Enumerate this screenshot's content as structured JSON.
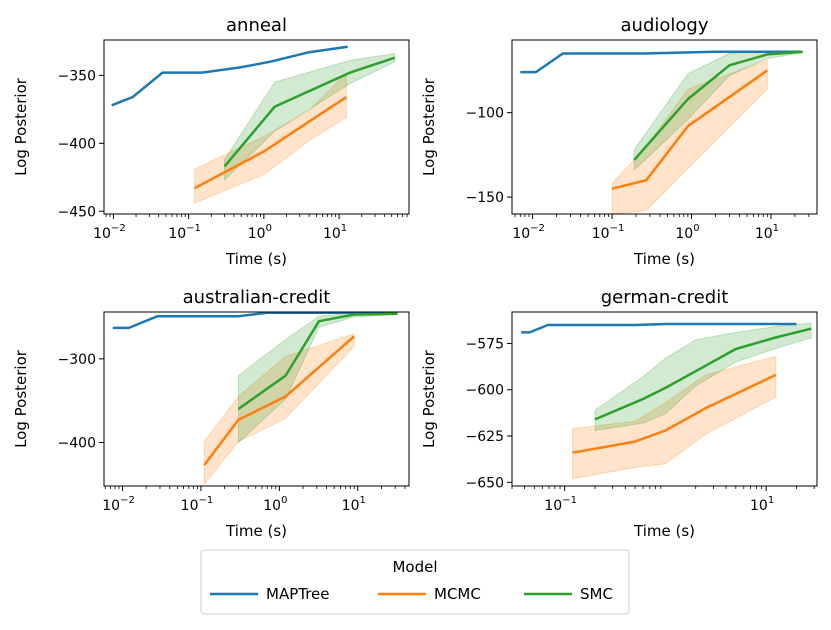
{
  "figure": {
    "legend": {
      "title": "Model",
      "entries": [
        "MAPTree",
        "MCMC",
        "SMC"
      ],
      "placement": "bottom-center"
    },
    "colors": {
      "MAPTree": "#1f77b4",
      "MCMC": "#ff7f0e",
      "SMC": "#2ca02c"
    }
  },
  "chart_data": [
    {
      "type": "line",
      "title": "anneal",
      "xlabel": "Time (s)",
      "ylabel": "Log Posterior",
      "xscale": "log",
      "xlim": [
        0.0075,
        85
      ],
      "ylim": [
        -452,
        -324
      ],
      "yticks": [
        -450,
        -400,
        -350
      ],
      "yticklabels": [
        "−450",
        "−400",
        "−350"
      ],
      "xticks": [
        0.01,
        0.1,
        1,
        10
      ],
      "xticklabels": [
        [
          "10",
          "−2"
        ],
        [
          "10",
          "−1"
        ],
        [
          "10",
          "0"
        ],
        [
          "10",
          "1"
        ]
      ],
      "series": [
        {
          "name": "MAPTree",
          "x": [
            0.0095,
            0.018,
            0.045,
            0.15,
            0.5,
            1.2,
            4,
            13
          ],
          "y": [
            -372,
            -366,
            -348,
            -348,
            -344,
            -340,
            -333,
            -329
          ]
        },
        {
          "name": "MCMC",
          "x": [
            0.12,
            1.0,
            4.0,
            12.5
          ],
          "y": [
            -433,
            -406,
            -384,
            -366
          ],
          "lower": [
            -444,
            -423,
            -398,
            -381
          ],
          "upper": [
            -419,
            -395,
            -376,
            -348
          ]
        },
        {
          "name": "SMC",
          "x": [
            0.3,
            1.4,
            14,
            55
          ],
          "y": [
            -417,
            -373,
            -348,
            -337
          ],
          "lower": [
            -427,
            -391,
            -356,
            -340
          ],
          "upper": [
            -412,
            -355,
            -339,
            -334
          ]
        }
      ]
    },
    {
      "type": "line",
      "title": "audiology",
      "xlabel": "Time (s)",
      "ylabel": "Log Posterior",
      "xscale": "log",
      "xlim": [
        0.0055,
        38
      ],
      "ylim": [
        -160,
        -57
      ],
      "yticks": [
        -150,
        -100
      ],
      "yticklabels": [
        "−150",
        "−100"
      ],
      "xticks": [
        0.01,
        0.1,
        1,
        10
      ],
      "xticklabels": [
        [
          "10",
          "−2"
        ],
        [
          "10",
          "−1"
        ],
        [
          "10",
          "0"
        ],
        [
          "10",
          "1"
        ]
      ],
      "series": [
        {
          "name": "MAPTree",
          "x": [
            0.007,
            0.011,
            0.024,
            0.25,
            0.6,
            2,
            10,
            24
          ],
          "y": [
            -76,
            -76,
            -65,
            -65,
            -64.5,
            -64,
            -64,
            -64
          ]
        },
        {
          "name": "MCMC",
          "x": [
            0.1,
            0.27,
            0.9,
            9
          ],
          "y": [
            -145,
            -140,
            -108,
            -75
          ],
          "lower": [
            -160,
            -158,
            -133,
            -86
          ],
          "upper": [
            -142,
            -120,
            -86,
            -69
          ]
        },
        {
          "name": "SMC",
          "x": [
            0.19,
            0.9,
            3,
            9,
            25
          ],
          "y": [
            -128,
            -92,
            -72,
            -65.5,
            -64
          ],
          "lower": [
            -134,
            -104,
            -78,
            -68,
            -64.5
          ],
          "upper": [
            -122,
            -77,
            -65,
            -63.5,
            -63.5
          ]
        }
      ]
    },
    {
      "type": "line",
      "title": "australian-credit",
      "xlabel": "Time (s)",
      "ylabel": "Log Posterior",
      "xscale": "log",
      "xlim": [
        0.0058,
        45
      ],
      "ylim": [
        -452,
        -244
      ],
      "yticks": [
        -400,
        -300
      ],
      "yticklabels": [
        "−400",
        "−300"
      ],
      "xticks": [
        0.01,
        0.1,
        1,
        10
      ],
      "xticklabels": [
        [
          "10",
          "−2"
        ],
        [
          "10",
          "−1"
        ],
        [
          "10",
          "0"
        ],
        [
          "10",
          "1"
        ]
      ],
      "series": [
        {
          "name": "MAPTree",
          "x": [
            0.0075,
            0.012,
            0.028,
            0.3,
            0.7,
            3,
            14,
            28
          ],
          "y": [
            -263,
            -263,
            -249,
            -249,
            -245,
            -245,
            -245,
            -245
          ]
        },
        {
          "name": "MCMC",
          "x": [
            0.11,
            0.3,
            1.2,
            9
          ],
          "y": [
            -427,
            -373,
            -345,
            -273
          ],
          "lower": [
            -450,
            -399,
            -371,
            -285
          ],
          "upper": [
            -399,
            -345,
            -297,
            -270
          ]
        },
        {
          "name": "SMC",
          "x": [
            0.3,
            1.2,
            3.2,
            9,
            32
          ],
          "y": [
            -360,
            -320,
            -255,
            -247,
            -246
          ],
          "lower": [
            -400,
            -348,
            -262,
            -250,
            -247
          ],
          "upper": [
            -320,
            -277,
            -249,
            -245,
            -245
          ]
        }
      ]
    },
    {
      "type": "line",
      "title": "german-credit",
      "xlabel": "Time (s)",
      "ylabel": "Log Posterior",
      "xscale": "log",
      "xlim": [
        0.03,
        32
      ],
      "ylim": [
        -652,
        -558
      ],
      "yticks": [
        -650,
        -625,
        -600,
        -575
      ],
      "yticklabels": [
        "−650",
        "−625",
        "−600",
        "−575"
      ],
      "xticks": [
        0.1,
        10
      ],
      "xticklabels": [
        [
          "10",
          "−1"
        ],
        [
          "10",
          "1"
        ]
      ],
      "series": [
        {
          "name": "MAPTree",
          "x": [
            0.037,
            0.045,
            0.068,
            0.5,
            1,
            5,
            20
          ],
          "y": [
            -569,
            -569,
            -565,
            -565,
            -564.5,
            -564.5,
            -564.5
          ]
        },
        {
          "name": "MCMC",
          "x": [
            0.12,
            0.5,
            1.0,
            2.5,
            12.5
          ],
          "y": [
            -634,
            -628,
            -622,
            -610,
            -592
          ],
          "lower": [
            -648,
            -642,
            -640,
            -624,
            -604
          ],
          "upper": [
            -621,
            -617,
            -607,
            -592,
            -582
          ]
        },
        {
          "name": "SMC",
          "x": [
            0.2,
            0.6,
            1.0,
            2.0,
            5.0,
            12,
            28
          ],
          "y": [
            -616,
            -605,
            -599,
            -590,
            -578,
            -572,
            -567
          ],
          "lower": [
            -622,
            -618,
            -613,
            -598,
            -585,
            -578,
            -572
          ],
          "upper": [
            -611,
            -593,
            -583,
            -573,
            -569,
            -566,
            -564
          ]
        }
      ]
    }
  ]
}
